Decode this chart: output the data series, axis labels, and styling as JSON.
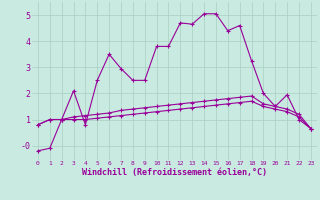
{
  "background_color": "#c8eae0",
  "grid_color": "#a8cfc0",
  "line_color": "#990099",
  "xlim": [
    -0.5,
    23.5
  ],
  "ylim": [
    -0.55,
    5.5
  ],
  "xlabel": "Windchill (Refroidissement éolien,°C)",
  "ytick_vals": [
    0,
    1,
    2,
    3,
    4,
    5
  ],
  "ytick_labels": [
    "-0",
    "1",
    "2",
    "3",
    "4",
    "5"
  ],
  "xtick_vals": [
    0,
    1,
    2,
    3,
    4,
    5,
    6,
    7,
    8,
    9,
    10,
    11,
    12,
    13,
    14,
    15,
    16,
    17,
    18,
    19,
    20,
    21,
    22,
    23
  ],
  "series": [
    {
      "x": [
        0,
        1,
        2,
        3,
        4,
        5,
        6,
        7,
        8,
        9,
        10,
        11,
        12,
        13,
        14,
        15,
        16,
        17,
        18,
        19,
        20,
        21,
        22,
        23
      ],
      "y": [
        0.8,
        1.0,
        1.0,
        1.0,
        1.0,
        1.05,
        1.1,
        1.15,
        1.2,
        1.25,
        1.3,
        1.35,
        1.4,
        1.45,
        1.5,
        1.55,
        1.6,
        1.65,
        1.7,
        1.5,
        1.4,
        1.3,
        1.1,
        0.65
      ]
    },
    {
      "x": [
        0,
        1,
        2,
        3,
        4,
        5,
        6,
        7,
        8,
        9,
        10,
        11,
        12,
        13,
        14,
        15,
        16,
        17,
        18,
        19,
        20,
        21,
        22,
        23
      ],
      "y": [
        0.8,
        1.0,
        1.0,
        1.1,
        1.15,
        1.2,
        1.25,
        1.35,
        1.4,
        1.45,
        1.5,
        1.55,
        1.6,
        1.65,
        1.7,
        1.75,
        1.8,
        1.85,
        1.9,
        1.6,
        1.5,
        1.4,
        1.2,
        0.65
      ]
    },
    {
      "x": [
        0,
        1,
        2,
        3,
        4,
        5,
        6,
        7,
        8,
        9,
        10,
        11,
        12,
        13,
        14,
        15,
        16,
        17,
        18,
        19,
        20,
        21,
        22,
        23
      ],
      "y": [
        -0.2,
        -0.1,
        1.0,
        2.1,
        0.8,
        2.5,
        3.5,
        2.95,
        2.5,
        2.5,
        3.8,
        3.8,
        4.7,
        4.65,
        5.05,
        5.05,
        4.4,
        4.6,
        3.25,
        2.0,
        1.5,
        1.95,
        1.0,
        0.65
      ]
    }
  ]
}
